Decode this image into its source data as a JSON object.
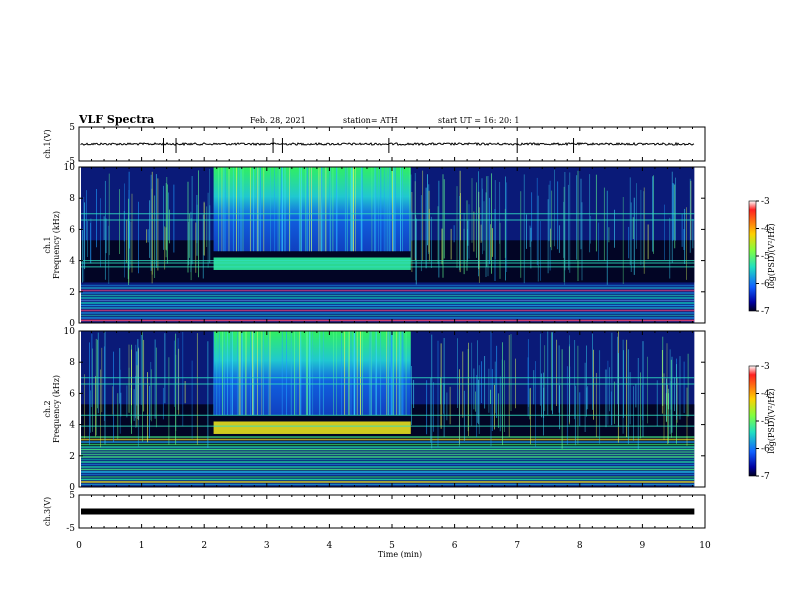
{
  "header": {
    "title": "VLF Spectra",
    "date": "Feb. 28, 2021",
    "station": "station= ATH",
    "start": "start  UT =   16: 20: 1"
  },
  "chart_data": [
    {
      "type": "line",
      "panel": "ch1-waveform",
      "ylabel": "ch.1(V)",
      "ylim": [
        -5,
        5
      ],
      "yticks": [
        "5",
        "-5"
      ],
      "baseline": 0,
      "color": "#000000"
    },
    {
      "type": "heatmap",
      "panel": "ch1-spectrogram",
      "ylabel": "ch.1\nFrequency (kHz)",
      "ylabel_line1": "ch.1",
      "ylabel_line2": "Frequency  (kHz)",
      "ylim": [
        0,
        10
      ],
      "yticks": [
        "0",
        "2",
        "4",
        "6",
        "8",
        "10"
      ],
      "intense_interval_min": [
        2.15,
        5.3
      ],
      "band_lines_khz": [
        3.6,
        3.85,
        4.0,
        6.6,
        7.0
      ],
      "colorbar": {
        "label": "log(PSD)(V²/Hz)",
        "range": [
          -7,
          -3
        ],
        "ticks": [
          "-3",
          "-4",
          "-5",
          "-6",
          "-7"
        ]
      }
    },
    {
      "type": "heatmap",
      "panel": "ch2-spectrogram",
      "ylabel_line1": "ch.2",
      "ylabel_line2": "Frequency  (kHz)",
      "ylim": [
        0,
        10
      ],
      "yticks": [
        "0",
        "2",
        "4",
        "6",
        "8",
        "10"
      ],
      "intense_interval_min": [
        2.15,
        5.3
      ],
      "band_lines_khz": [
        3.9,
        4.6,
        6.6,
        7.0
      ],
      "colorbar": {
        "label": "log(PSD)(V²/Hz)",
        "range": [
          -7,
          -3
        ],
        "ticks": [
          "-3",
          "-4",
          "-5",
          "-6",
          "-7"
        ]
      }
    },
    {
      "type": "line",
      "panel": "ch3-waveform",
      "ylabel": "ch.3(V)",
      "ylim": [
        -5,
        5
      ],
      "yticks": [
        "5",
        "-5"
      ],
      "baseline": 0,
      "color": "#000000"
    }
  ],
  "x_axis": {
    "label": "Time  (min)",
    "range": [
      0,
      10
    ],
    "ticks": [
      "0",
      "1",
      "2",
      "3",
      "4",
      "5",
      "6",
      "7",
      "8",
      "9",
      "10"
    ],
    "data_end_min": 9.83
  },
  "colors": {
    "background_quiet": "#0a1a78",
    "background_dark": "#000010",
    "intense": "#20e870",
    "waveform": "#000000"
  }
}
